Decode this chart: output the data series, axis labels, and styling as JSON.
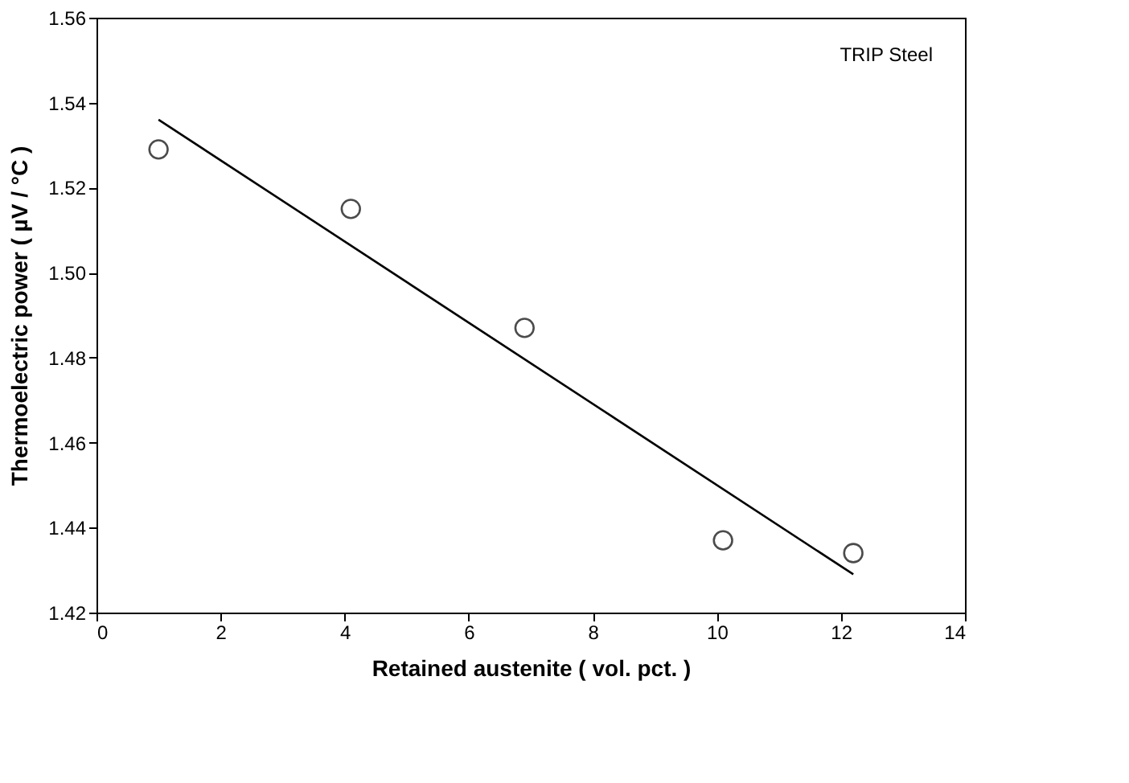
{
  "chart_data": {
    "type": "scatter",
    "xlabel": "Retained austenite ( vol. pct. )",
    "ylabel": "Thermoelectric power ( µV / °C )",
    "xlim": [
      0,
      14
    ],
    "xticks": [
      0,
      2,
      4,
      6,
      8,
      10,
      12,
      14
    ],
    "ylim": [
      1.42,
      1.56
    ],
    "yticks": [
      1.42,
      1.44,
      1.46,
      1.48,
      {
        "value": 1.5,
        "label": "1.50"
      },
      1.52,
      1.54,
      1.56
    ],
    "grid": false,
    "marker": "circle",
    "annotations": [
      "TRIP Steel"
    ],
    "series": [
      {
        "color": "#000000",
        "x": [
          1.0,
          4.1,
          6.9,
          10.1,
          12.2
        ],
        "values": [
          1.529,
          1.515,
          1.487,
          1.437,
          1.434
        ]
      },
      {
        "type": "line",
        "color": "#000000",
        "line_style": "solid",
        "marker": "none",
        "x": [
          1.0,
          12.2
        ],
        "values": [
          1.536,
          1.429
        ]
      }
    ]
  }
}
